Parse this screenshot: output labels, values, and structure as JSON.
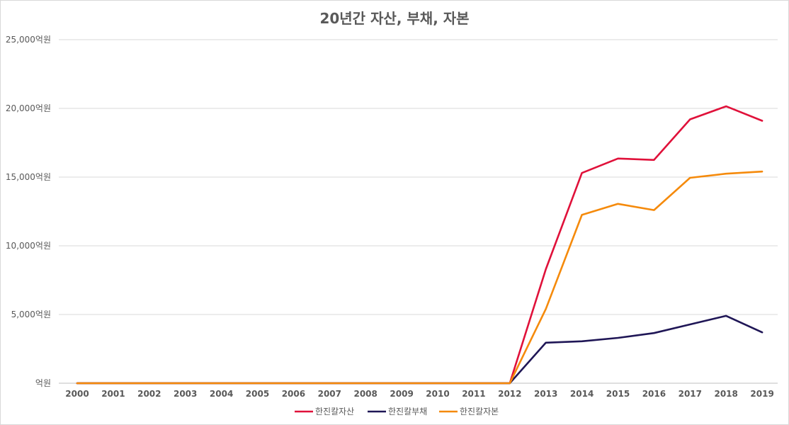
{
  "chart_data": {
    "type": "line",
    "title": "20년간 자산, 부채, 자본",
    "xlabel": "",
    "ylabel": "",
    "x": [
      "2000",
      "2001",
      "2002",
      "2003",
      "2004",
      "2005",
      "2006",
      "2007",
      "2008",
      "2009",
      "2010",
      "2011",
      "2012",
      "2013",
      "2014",
      "2015",
      "2016",
      "2017",
      "2018",
      "2019"
    ],
    "y_ticks": [
      "억원",
      "5,000억원",
      "10,000억원",
      "15,000억원",
      "20,000억원",
      "25,000억원"
    ],
    "ylim": [
      0,
      25000
    ],
    "grid": true,
    "legend_position": "bottom",
    "series": [
      {
        "name": "한진칼자산",
        "color": "#E0113A",
        "values": [
          0,
          0,
          0,
          0,
          0,
          0,
          0,
          0,
          0,
          0,
          0,
          0,
          0,
          8300,
          15300,
          16350,
          16250,
          19200,
          20150,
          19100
        ]
      },
      {
        "name": "한진칼부채",
        "color": "#1F1656",
        "values": [
          0,
          0,
          0,
          0,
          0,
          0,
          0,
          0,
          0,
          0,
          0,
          0,
          0,
          2950,
          3050,
          3300,
          3650,
          4280,
          4900,
          3700
        ]
      },
      {
        "name": "한진칼자본",
        "color": "#F58A0B",
        "values": [
          0,
          0,
          0,
          0,
          0,
          0,
          0,
          0,
          0,
          0,
          0,
          0,
          0,
          5400,
          12250,
          13050,
          12600,
          14950,
          15250,
          15400
        ]
      }
    ]
  }
}
